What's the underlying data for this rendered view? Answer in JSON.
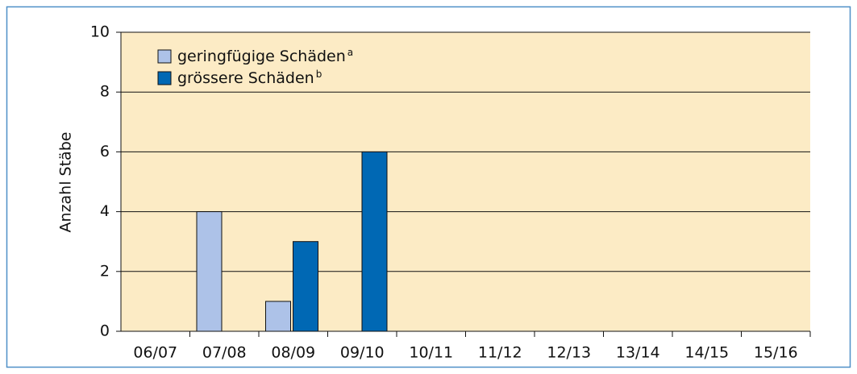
{
  "chart_data": {
    "type": "bar",
    "ylabel": "Anzahl Stäbe",
    "categories": [
      "06/07",
      "07/08",
      "08/09",
      "09/10",
      "10/11",
      "11/12",
      "12/13",
      "13/14",
      "14/15",
      "15/16"
    ],
    "series": [
      {
        "name": "geringfügige Schäden",
        "note": "a",
        "color": "#adc2e8",
        "values": [
          0,
          4,
          1,
          0,
          0,
          0,
          0,
          0,
          0,
          0
        ]
      },
      {
        "name": "grössere Schäden",
        "note": "b",
        "color": "#0068b4",
        "values": [
          0,
          0,
          3,
          6,
          0,
          0,
          0,
          0,
          0,
          0
        ]
      }
    ],
    "ylim": [
      0,
      10
    ],
    "yticks": [
      0,
      2,
      4,
      6,
      8,
      10
    ],
    "grid": true,
    "legend": "upper left"
  }
}
